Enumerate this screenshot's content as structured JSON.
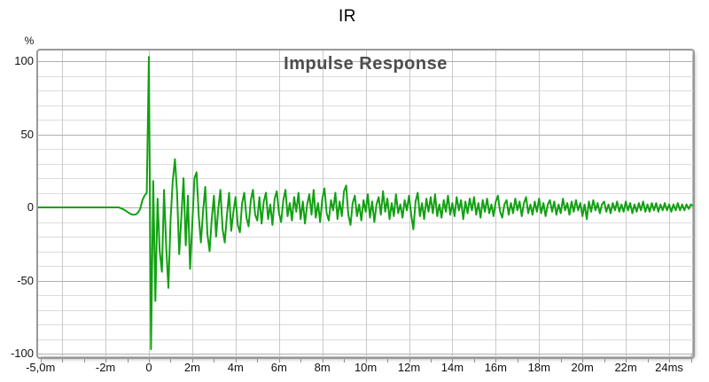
{
  "window": {
    "title": "IR"
  },
  "colors": {
    "background": "#ffffff",
    "line": "#12a012",
    "grid_minor_horizontal": "#dcdcdc",
    "grid_vertical": "#c9c9c9",
    "grid_major_horizontal": "#b0b0b0",
    "plot_border": "#999999",
    "axis_text": "#111111",
    "title_text": "#000000",
    "inner_title_text": "#4d4d4d",
    "tick_mark": "#8f8f8f"
  },
  "chart_data": {
    "type": "line",
    "title": "IR",
    "inner_title": "Impulse Response",
    "ylabel": "%",
    "xlabel": "",
    "x_unit": "ms",
    "xlim": [
      -5.1,
      25.1
    ],
    "ylim": [
      -102.5,
      107.5
    ],
    "grid": true,
    "legend_position": "none",
    "y_major_ticks": [
      {
        "v": 100,
        "label": "100"
      },
      {
        "v": 50,
        "label": "50"
      },
      {
        "v": 0,
        "label": "0"
      },
      {
        "v": -50,
        "label": "-50"
      },
      {
        "v": -100,
        "label": "-100"
      }
    ],
    "y_minor_step": 10,
    "x_gridlines_every_ms": 2,
    "x_minor_tick_every_ms": 1,
    "x_ticks": [
      {
        "t": -5,
        "label": "-5,0m"
      },
      {
        "t": -2,
        "label": "-2m"
      },
      {
        "t": 0,
        "label": "0"
      },
      {
        "t": 2,
        "label": "2m"
      },
      {
        "t": 4,
        "label": "4m"
      },
      {
        "t": 6,
        "label": "6m"
      },
      {
        "t": 8,
        "label": "8m"
      },
      {
        "t": 10,
        "label": "10m"
      },
      {
        "t": 12,
        "label": "12m"
      },
      {
        "t": 14,
        "label": "14m"
      },
      {
        "t": 16,
        "label": "16m"
      },
      {
        "t": 18,
        "label": "18m"
      },
      {
        "t": 20,
        "label": "20m"
      },
      {
        "t": 22,
        "label": "22m"
      },
      {
        "t": 24,
        "label": "24ms"
      }
    ],
    "series": [
      {
        "name": "Impulse Response",
        "color": "#12a012",
        "unit": "%",
        "t0": -5.1,
        "dt": 0.1,
        "values": [
          0,
          0,
          0,
          0,
          0,
          0,
          0,
          0,
          0,
          0,
          0,
          0,
          0,
          0,
          0,
          0,
          0,
          0,
          0,
          0,
          0,
          0,
          0,
          0,
          0,
          0,
          0,
          0,
          0,
          0,
          0,
          0,
          0,
          0,
          0,
          0,
          0,
          0,
          -0.5,
          -1.2,
          -2,
          -3,
          -4,
          -4.8,
          -5,
          -4.8,
          -3.5,
          -1,
          5,
          8,
          10,
          103,
          -97,
          18,
          -64,
          6,
          -30,
          -44,
          12,
          -28,
          -55,
          -8,
          18,
          33,
          10,
          -32,
          -6,
          20,
          -26,
          8,
          -42,
          -12,
          20,
          24,
          -6,
          -24,
          -2,
          14,
          -18,
          -30,
          -8,
          8,
          -20,
          -1,
          12,
          -15,
          -24,
          -5,
          10,
          -16,
          -3,
          7,
          -12,
          -17,
          3,
          10,
          -7,
          -13,
          5,
          12,
          -5,
          -9,
          7,
          -11,
          4,
          10,
          -8,
          2,
          -12,
          6,
          11,
          -4,
          -10,
          5,
          12,
          -6,
          3,
          -9,
          7,
          -3,
          10,
          -8,
          4,
          -11,
          2,
          9,
          -5,
          12,
          -7,
          3,
          -10,
          6,
          13,
          -4,
          -9,
          5,
          -2,
          10,
          -8,
          4,
          -6,
          11,
          15,
          -5,
          -12,
          3,
          8,
          -6,
          2,
          -9,
          5,
          -3,
          9,
          -7,
          4,
          -10,
          2,
          7,
          -5,
          11,
          -3,
          6,
          -8,
          3,
          -6,
          9,
          -4,
          2,
          -7,
          5,
          -2,
          8,
          -5,
          -15,
          4,
          10,
          -6,
          3,
          -8,
          6,
          -3,
          7,
          -4,
          9,
          -6,
          2,
          -7,
          5,
          -3,
          8,
          -5,
          3,
          -6,
          7,
          -2,
          5,
          -8,
          4,
          -4,
          6,
          -2,
          7,
          -5,
          3,
          -7,
          5,
          -3,
          6,
          -4,
          2,
          -6,
          4,
          8,
          -3,
          -7,
          2,
          5,
          -5,
          3,
          -4,
          6,
          -2,
          4,
          -6,
          3,
          7,
          -4,
          2,
          -5,
          4,
          -3,
          6,
          -4,
          3,
          -6,
          2,
          5,
          -3,
          4,
          -5,
          2,
          -4,
          6,
          -2,
          3,
          -5,
          4,
          -3,
          5,
          -2,
          3,
          -6,
          2,
          -8,
          4,
          -3,
          5,
          -2,
          3,
          -4,
          2,
          4,
          -3,
          2,
          -4,
          3,
          -2,
          4,
          -3,
          2,
          -3,
          4,
          -2,
          3,
          -4,
          2,
          -3,
          3,
          -2,
          4,
          -3,
          2,
          -3,
          3,
          -2,
          3,
          -3,
          2,
          -2,
          3,
          -2,
          2,
          -3,
          2,
          -2,
          3,
          -2,
          2,
          -2,
          2,
          -1,
          2,
          1
        ]
      }
    ]
  }
}
